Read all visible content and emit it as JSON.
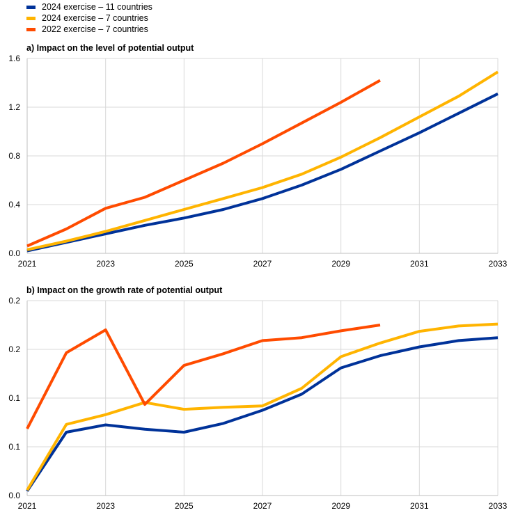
{
  "legend": [
    {
      "label": "2024 exercise – 11 countries",
      "color": "#003299"
    },
    {
      "label": "2024 exercise – 7 countries",
      "color": "#ffb400"
    },
    {
      "label": "2022 exercise – 7 countries",
      "color": "#ff4b00"
    }
  ],
  "chart_data": [
    {
      "type": "line",
      "title": "a) Impact on the level of potential output",
      "x": [
        2021,
        2022,
        2023,
        2024,
        2025,
        2026,
        2027,
        2028,
        2029,
        2030,
        2031,
        2032,
        2033
      ],
      "x_ticks": [
        "2021",
        "2023",
        "2025",
        "2027",
        "2029",
        "2031",
        "2033"
      ],
      "y_ticks": [
        "0.0",
        "0.4",
        "0.8",
        "1.2",
        "1.6"
      ],
      "ylim": [
        0,
        1.6
      ],
      "grid": true,
      "legend_position": "top-left",
      "series": [
        {
          "name": "2024 exercise – 11 countries",
          "color": "#003299",
          "values": [
            0.02,
            0.09,
            0.16,
            0.23,
            0.29,
            0.36,
            0.45,
            0.56,
            0.69,
            0.84,
            0.99,
            1.15,
            1.31
          ]
        },
        {
          "name": "2024 exercise – 7 countries",
          "color": "#ffb400",
          "values": [
            0.03,
            0.1,
            0.18,
            0.27,
            0.36,
            0.45,
            0.54,
            0.65,
            0.79,
            0.95,
            1.12,
            1.29,
            1.49
          ]
        },
        {
          "name": "2022 exercise – 7 countries",
          "color": "#ff4b00",
          "values": [
            0.06,
            0.2,
            0.37,
            0.46,
            0.6,
            0.74,
            0.9,
            1.07,
            1.24,
            1.42,
            null,
            null,
            null
          ]
        }
      ]
    },
    {
      "type": "line",
      "title": "b) Impact on the growth rate of potential output",
      "x": [
        2021,
        2022,
        2023,
        2024,
        2025,
        2026,
        2027,
        2028,
        2029,
        2030,
        2031,
        2032,
        2033
      ],
      "x_ticks": [
        "2021",
        "2023",
        "2025",
        "2027",
        "2029",
        "2031",
        "2033"
      ],
      "y_ticks": [
        "0.0",
        "0.1",
        "0.1",
        "0.2",
        "0.2"
      ],
      "ylim": [
        0,
        0.2
      ],
      "grid": true,
      "series": [
        {
          "name": "2024 exercise – 11 countries",
          "color": "#003299",
          "values": [
            0.0045,
            0.065,
            0.0725,
            0.068,
            0.065,
            0.074,
            0.0875,
            0.104,
            0.131,
            0.1435,
            0.1525,
            0.159,
            0.162
          ]
        },
        {
          "name": "2024 exercise – 7 countries",
          "color": "#ffb400",
          "values": [
            0.0055,
            0.073,
            0.083,
            0.0955,
            0.0885,
            0.0905,
            0.092,
            0.11,
            0.1425,
            0.1565,
            0.1685,
            0.174,
            0.176
          ]
        },
        {
          "name": "2022 exercise – 7 countries",
          "color": "#ff4b00",
          "values": [
            0.0685,
            0.1465,
            0.17,
            0.0935,
            0.1335,
            0.1455,
            0.159,
            0.162,
            0.169,
            0.175,
            null,
            null,
            null
          ]
        }
      ]
    }
  ]
}
